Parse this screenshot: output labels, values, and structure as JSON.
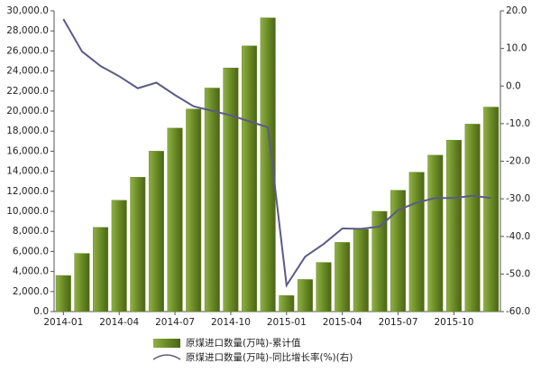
{
  "chart_data": {
    "type": "bar_line",
    "categories": [
      "2014-01",
      null,
      null,
      "2014-04",
      null,
      null,
      "2014-07",
      null,
      null,
      "2014-10",
      null,
      null,
      "2015-01",
      null,
      null,
      "2015-04",
      null,
      null,
      "2015-07",
      null,
      null,
      "2015-10",
      null,
      null
    ],
    "series": [
      {
        "name": "原煤进口数量(万吨)-累计值",
        "type": "bar",
        "color": "#6a8a26",
        "values": [
          3600,
          5800,
          8400,
          11100,
          13400,
          16000,
          18300,
          20200,
          22300,
          24300,
          26500,
          29300,
          1600,
          3200,
          4900,
          6900,
          8200,
          10000,
          12100,
          13900,
          15600,
          17100,
          18700,
          20400
        ]
      },
      {
        "name": "原煤进口数量(万吨)-同比增长率(%)(右)",
        "type": "line",
        "axis": "y2",
        "color": "#5d5a86",
        "values": [
          17.8,
          9.2,
          5.3,
          2.6,
          -0.6,
          0.9,
          -2.4,
          -5.4,
          -6.6,
          -7.8,
          -9.4,
          -11,
          -53,
          -45.4,
          -42,
          -37.9,
          -38,
          -37.4,
          -33,
          -31,
          -29.8,
          -29.8,
          -29.2,
          -29.8
        ]
      }
    ],
    "ylim": [
      0,
      30000
    ],
    "yticks": [
      {
        "value": 0,
        "label": "0.0"
      },
      {
        "value": 2000,
        "label": "2,000.0"
      },
      {
        "value": 4000,
        "label": "4,000.0"
      },
      {
        "value": 6000,
        "label": "6,000.0"
      },
      {
        "value": 8000,
        "label": "8,000.0"
      },
      {
        "value": 10000,
        "label": "10,000.0"
      },
      {
        "value": 12000,
        "label": "12,000.0"
      },
      {
        "value": 14000,
        "label": "14,000.0"
      },
      {
        "value": 16000,
        "label": "16,000.0"
      },
      {
        "value": 18000,
        "label": "18,000.0"
      },
      {
        "value": 20000,
        "label": "20,000.0"
      },
      {
        "value": 22000,
        "label": "22,000.0"
      },
      {
        "value": 24000,
        "label": "24,000.0"
      },
      {
        "value": 26000,
        "label": "26,000.0"
      },
      {
        "value": 28000,
        "label": "28,000.0"
      },
      {
        "value": 30000,
        "label": "30,000.0"
      }
    ],
    "y2lim": [
      -60,
      20
    ],
    "y2ticks": [
      {
        "value": -60,
        "label": "-60.0"
      },
      {
        "value": -50,
        "label": "-50.0"
      },
      {
        "value": -40,
        "label": "-40.0"
      },
      {
        "value": -30,
        "label": "-30.0"
      },
      {
        "value": -20,
        "label": "-20.0"
      },
      {
        "value": -10,
        "label": "-10.0"
      },
      {
        "value": 0,
        "label": "0.0"
      },
      {
        "value": 10,
        "label": "10.0"
      },
      {
        "value": 20,
        "label": "20.0"
      }
    ],
    "legend": "bottom"
  }
}
